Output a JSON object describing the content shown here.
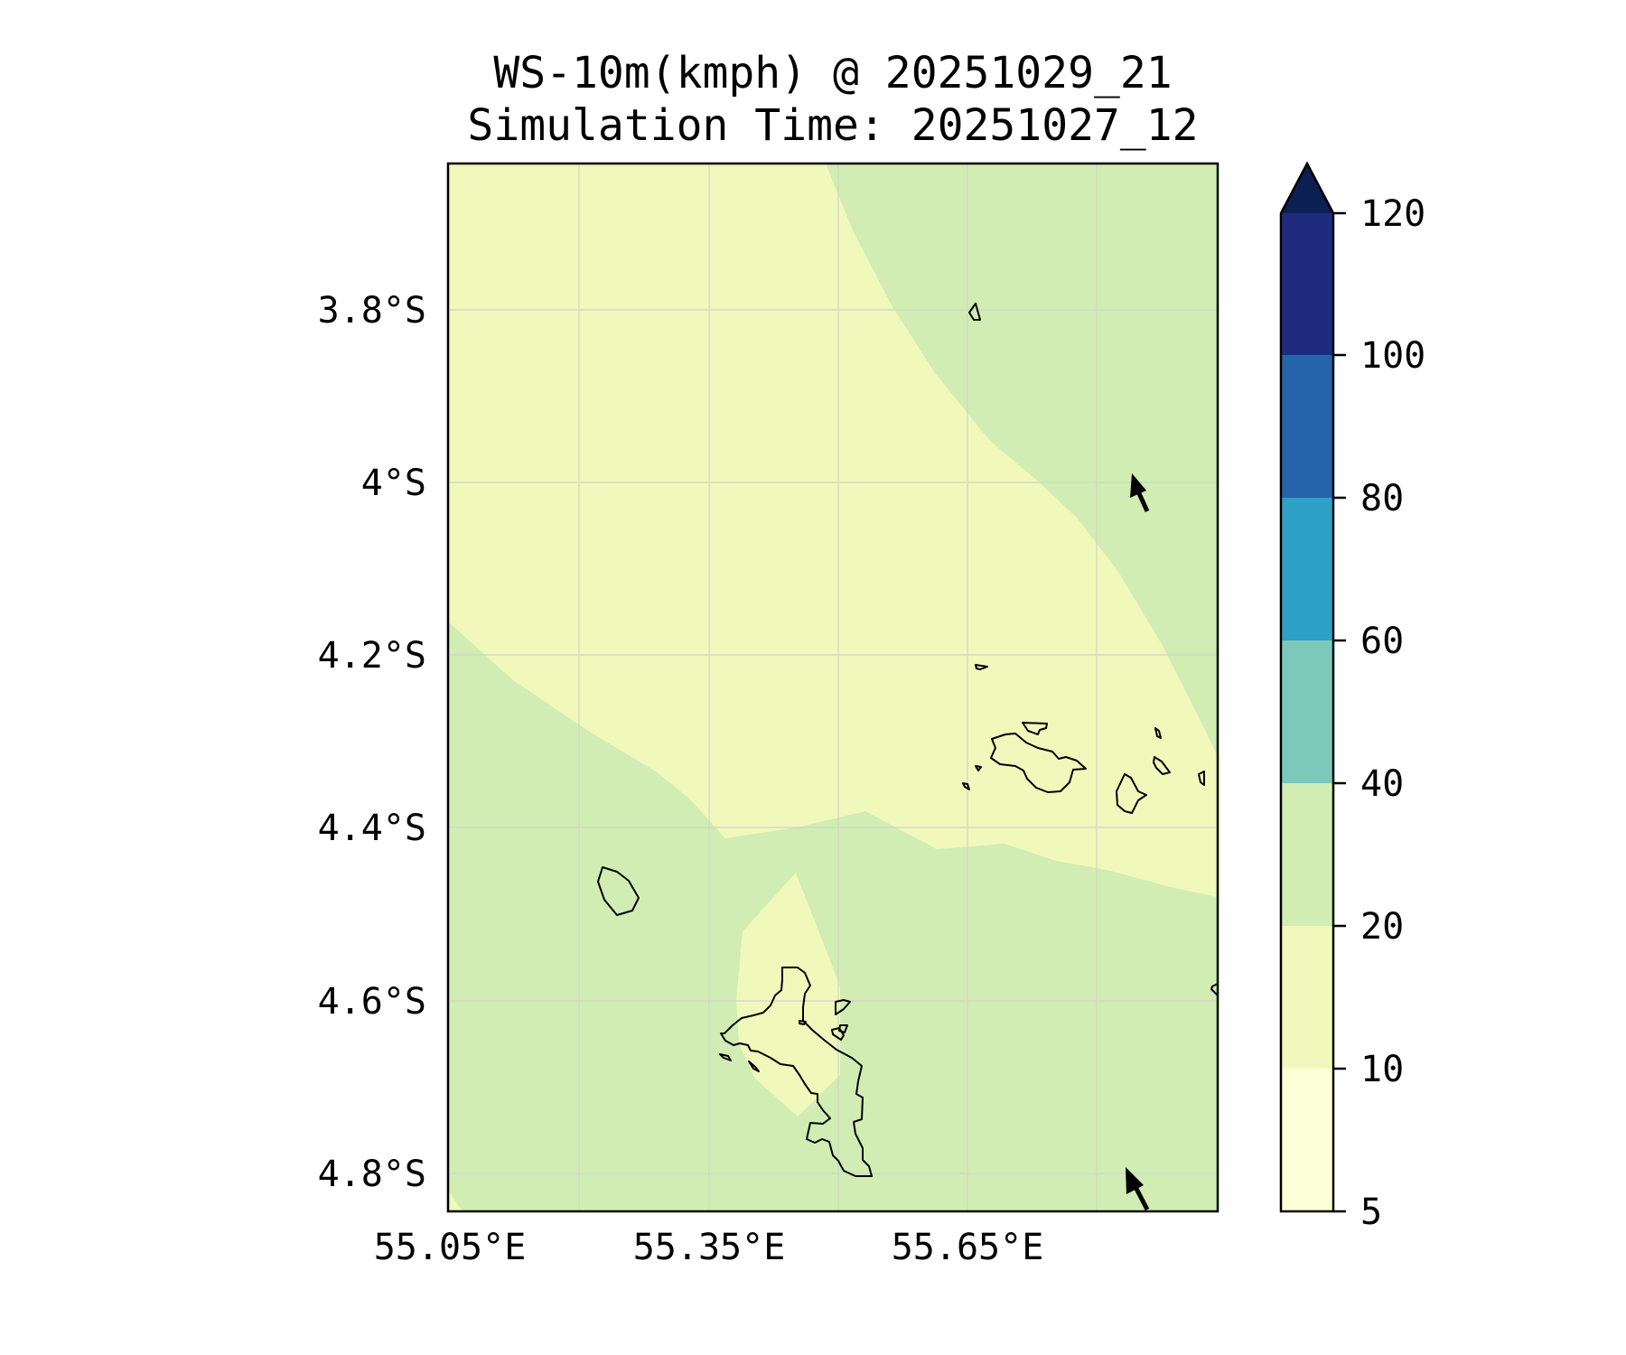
{
  "title": {
    "line1": "WS-10m(kmph) @ 20251029_21",
    "line2": "Simulation Time: 20251027_12"
  },
  "map": {
    "lat_ticks": [
      "3.8°S",
      "4°S",
      "4.2°S",
      "4.4°S",
      "4.6°S",
      "4.8°S"
    ],
    "lon_ticks": [
      "55.05°E",
      "55.35°E",
      "55.65°E"
    ],
    "lon_range": [
      "55.05°E",
      "55.95°E"
    ],
    "lat_range": [
      "3.63°S",
      "4.85°S"
    ],
    "grid": true,
    "coastlines": true,
    "fill_colors": {
      "10-20": "#f0f9bb",
      "20-40": "#d1edb3"
    },
    "wind_arrows_count": 2
  },
  "colorbar": {
    "ticks": [
      "5",
      "10",
      "20",
      "40",
      "60",
      "80",
      "100",
      "120"
    ],
    "extend": "max",
    "colors": [
      "#fcffd7",
      "#f0f9bb",
      "#d1edb3",
      "#7cc9bb",
      "#2da1c5",
      "#2563ab",
      "#1e2b7e"
    ],
    "extend_color": "#0c1f52",
    "placement": "right"
  }
}
